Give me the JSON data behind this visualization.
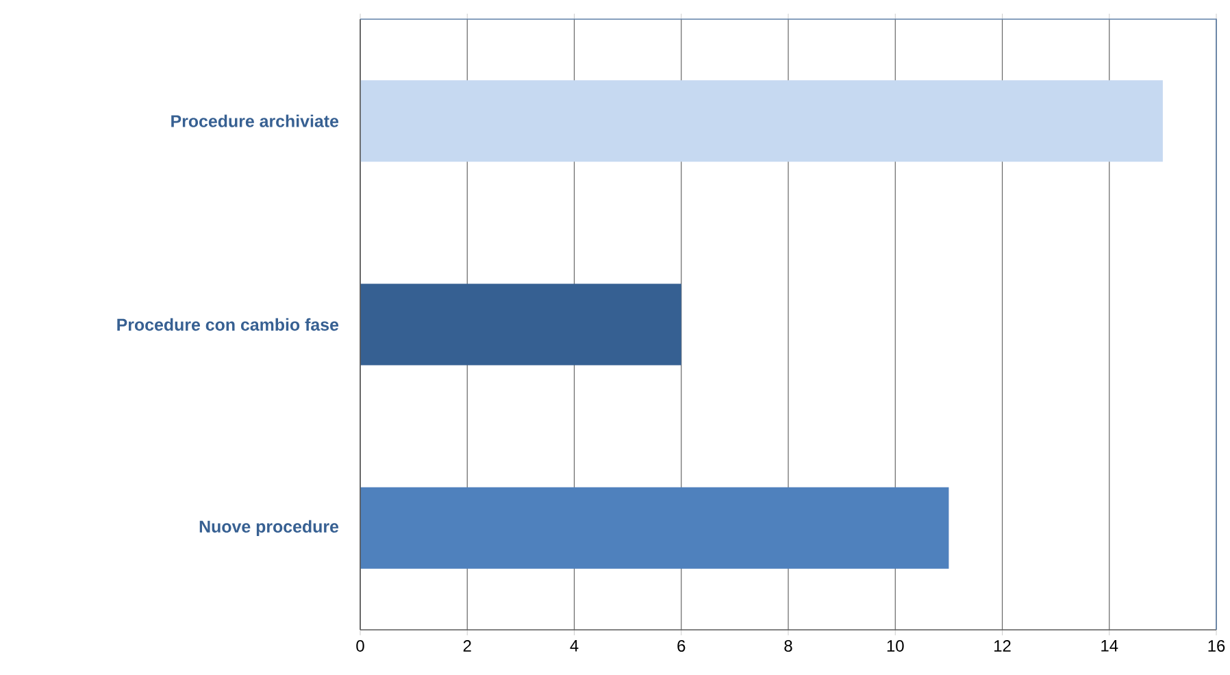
{
  "chart_data": {
    "type": "bar",
    "orientation": "horizontal",
    "categories": [
      "Procedure archiviate",
      "Procedure con cambio fase",
      "Nuove procedure"
    ],
    "values": [
      15,
      6,
      11
    ],
    "colors": [
      "#c6d9f1",
      "#366092",
      "#4f81bd"
    ],
    "xlim": [
      0,
      16
    ],
    "xticks": [
      0,
      2,
      4,
      6,
      8,
      10,
      12,
      14,
      16
    ],
    "grid": "x"
  }
}
